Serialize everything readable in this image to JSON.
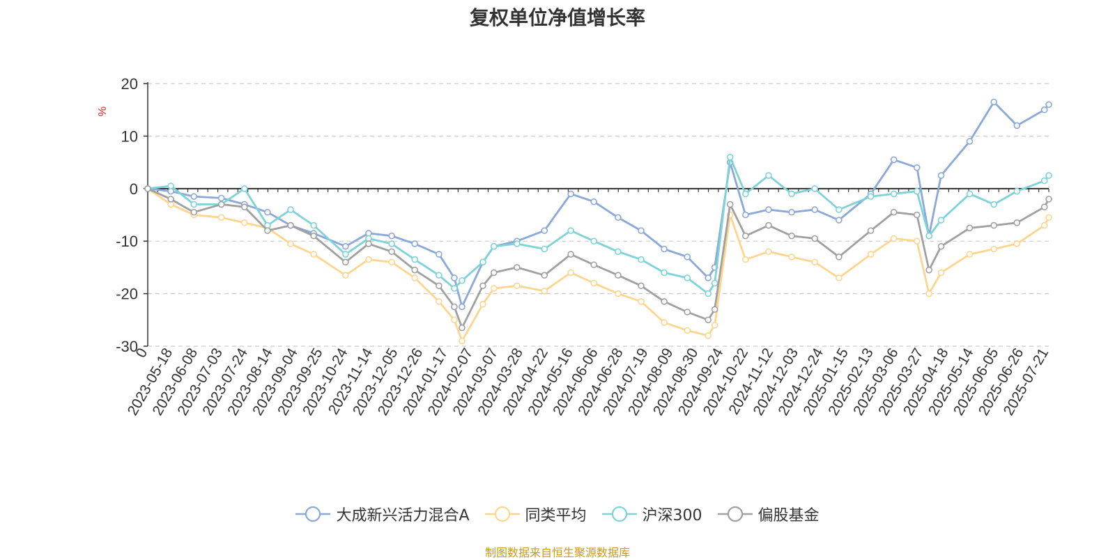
{
  "page": {
    "source_note": "制图数据来自恒生聚源数据库"
  },
  "chart_data": {
    "type": "line",
    "title": "复权单位净值增长率",
    "ylabel": "%",
    "xlabel": "",
    "ylim": [
      -30,
      20
    ],
    "yticks": [
      20,
      10,
      0,
      -10,
      -20,
      -30
    ],
    "grid": true,
    "legend_position": "bottom-center",
    "x_start_label": "0",
    "x_tick_labels": [
      "2023-05-18",
      "2023-06-08",
      "2023-07-03",
      "2023-07-24",
      "2023-08-14",
      "2023-09-04",
      "2023-09-25",
      "2023-10-24",
      "2023-11-14",
      "2023-12-05",
      "2023-12-26",
      "2024-01-17",
      "2024-02-07",
      "2024-03-07",
      "2024-03-28",
      "2024-04-22",
      "2024-05-16",
      "2024-06-06",
      "2024-06-28",
      "2024-07-19",
      "2024-08-09",
      "2024-08-30",
      "2024-09-24",
      "2024-10-22",
      "2024-11-12",
      "2024-12-03",
      "2024-12-24",
      "2025-01-15",
      "2025-02-13",
      "2025-03-06",
      "2025-03-27",
      "2025-04-18",
      "2025-05-14",
      "2025-06-05",
      "2025-06-26",
      "2025-07-21"
    ],
    "x": [
      "2023-04-27",
      "2023-05-18",
      "2023-06-08",
      "2023-07-03",
      "2023-07-24",
      "2023-08-14",
      "2023-09-04",
      "2023-09-25",
      "2023-10-24",
      "2023-11-14",
      "2023-12-05",
      "2023-12-26",
      "2024-01-17",
      "2024-01-31",
      "2024-02-07",
      "2024-02-26",
      "2024-03-07",
      "2024-03-28",
      "2024-04-22",
      "2024-05-16",
      "2024-06-06",
      "2024-06-28",
      "2024-07-19",
      "2024-08-09",
      "2024-08-30",
      "2024-09-18",
      "2024-09-24",
      "2024-10-08",
      "2024-10-22",
      "2024-11-12",
      "2024-12-03",
      "2024-12-24",
      "2025-01-15",
      "2025-02-13",
      "2025-03-06",
      "2025-03-27",
      "2025-04-07",
      "2025-04-18",
      "2025-05-14",
      "2025-06-05",
      "2025-06-26",
      "2025-07-21",
      "2025-07-25"
    ],
    "series": [
      {
        "name": "大成新兴活力混合A",
        "color": "#8aa8d8",
        "values": [
          0,
          -0.5,
          -1.5,
          -1.8,
          -3.0,
          -4.5,
          -7.0,
          -8.5,
          -11.0,
          -8.5,
          -9.0,
          -10.5,
          -12.5,
          -17.0,
          -22.5,
          -14.0,
          -11.0,
          -10.0,
          -8.0,
          -1.0,
          -2.5,
          -5.5,
          -8.0,
          -11.5,
          -13.0,
          -17.0,
          -15.0,
          5.0,
          -5.0,
          -4.0,
          -4.5,
          -4.0,
          -6.0,
          -1.0,
          5.5,
          4.0,
          -9.0,
          2.5,
          9.0,
          16.5,
          12.0,
          15.0,
          16.0
        ]
      },
      {
        "name": "同类平均",
        "color": "#fdd58e",
        "values": [
          0,
          -3.0,
          -5.0,
          -5.5,
          -6.5,
          -7.5,
          -10.5,
          -12.5,
          -16.5,
          -13.5,
          -14.0,
          -17.0,
          -21.5,
          -25.0,
          -29.0,
          -22.0,
          -19.0,
          -18.5,
          -19.5,
          -16.0,
          -18.0,
          -20.0,
          -21.5,
          -25.5,
          -27.0,
          -28.0,
          -26.0,
          -5.0,
          -13.5,
          -12.0,
          -13.0,
          -14.0,
          -17.0,
          -12.5,
          -9.5,
          -10.0,
          -20.0,
          -16.0,
          -12.5,
          -11.5,
          -10.5,
          -7.0,
          -5.5
        ]
      },
      {
        "name": "沪深300",
        "color": "#7dd3d7",
        "values": [
          0,
          0.5,
          -3.0,
          -3.0,
          0.0,
          -7.0,
          -4.0,
          -7.0,
          -12.5,
          -9.5,
          -10.5,
          -13.5,
          -16.5,
          -19.0,
          -17.5,
          -14.0,
          -11.0,
          -10.5,
          -11.5,
          -8.0,
          -10.0,
          -12.0,
          -13.5,
          -16.0,
          -17.0,
          -20.0,
          -18.0,
          6.0,
          -1.0,
          2.5,
          -1.0,
          0.0,
          -4.0,
          -1.5,
          -1.0,
          -0.5,
          -9.0,
          -6.0,
          -1.0,
          -3.0,
          -0.5,
          1.5,
          2.5
        ]
      },
      {
        "name": "偏股基金",
        "color": "#a0a0a0",
        "values": [
          0,
          -2.0,
          -4.5,
          -3.0,
          -3.5,
          -8.0,
          -7.0,
          -9.0,
          -14.0,
          -10.5,
          -12.0,
          -15.5,
          -18.5,
          -22.5,
          -26.5,
          -18.5,
          -16.0,
          -15.0,
          -16.5,
          -12.5,
          -14.5,
          -16.5,
          -18.5,
          -21.5,
          -23.5,
          -25.0,
          -23.0,
          -3.0,
          -9.0,
          -7.0,
          -9.0,
          -9.5,
          -13.0,
          -8.0,
          -4.5,
          -5.0,
          -15.5,
          -11.0,
          -7.5,
          -7.0,
          -6.5,
          -3.5,
          -2.0
        ]
      }
    ]
  }
}
